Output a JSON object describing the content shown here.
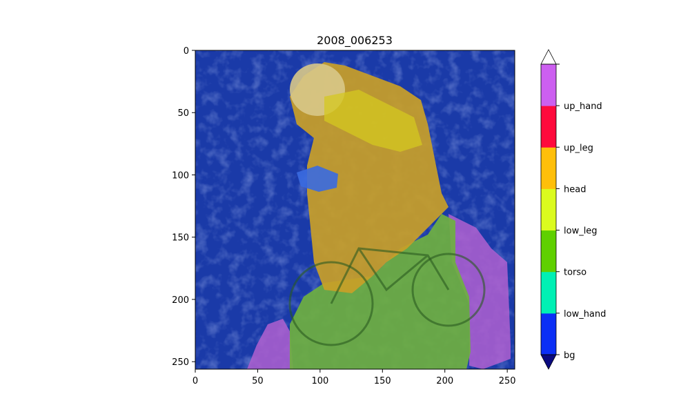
{
  "chart_data": {
    "type": "heatmap",
    "title": "2008_006253",
    "xlabel": "",
    "ylabel": "",
    "xlim": [
      0,
      256
    ],
    "ylim": [
      256,
      0
    ],
    "x_ticks": [
      0,
      50,
      100,
      150,
      200,
      250
    ],
    "y_ticks": [
      0,
      50,
      100,
      150,
      200,
      250
    ],
    "colorbar": {
      "labels": [
        "bg",
        "low_hand",
        "torso",
        "low_leg",
        "head",
        "up_leg",
        "up_hand"
      ],
      "colors": [
        "#0b2ff5",
        "#00f0b4",
        "#5fd000",
        "#dbfb1e",
        "#ffbf0a",
        "#ff0a3c",
        "#cc5ff0"
      ],
      "under_color": "#0a0a80",
      "over_color": "#ffffff"
    },
    "description_regions": {
      "background_color": "#1a3aa8",
      "person_color": "#c9a028",
      "bike_color": "#6fb040",
      "edge_color": "#b060d0"
    }
  }
}
